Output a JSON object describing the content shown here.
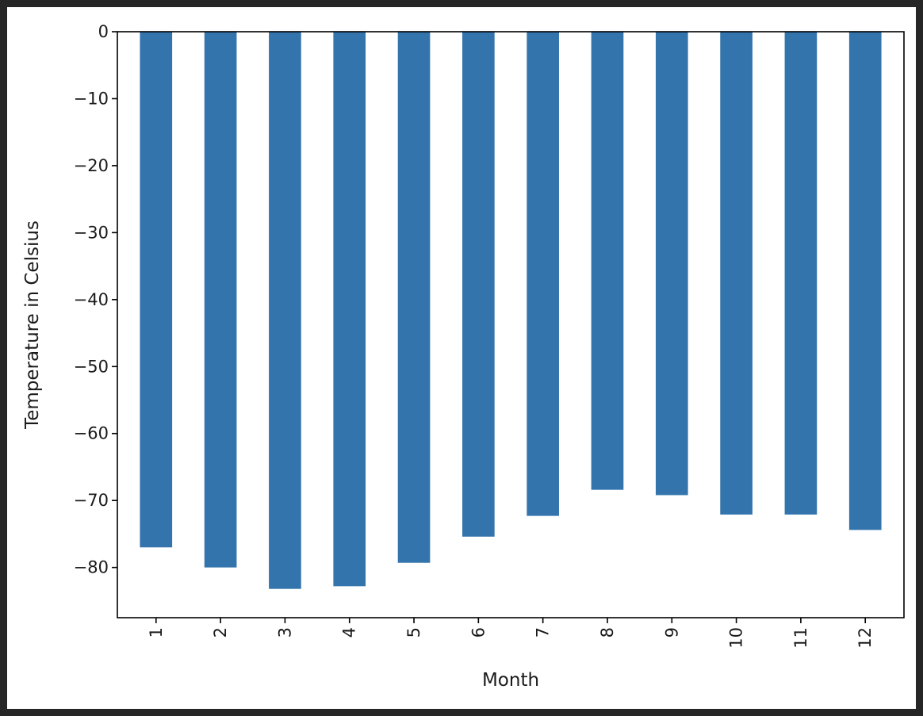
{
  "chart_data": {
    "type": "bar",
    "categories": [
      "1",
      "2",
      "3",
      "4",
      "5",
      "6",
      "7",
      "8",
      "9",
      "10",
      "11",
      "12"
    ],
    "values": [
      -77.0,
      -80.0,
      -83.2,
      -82.8,
      -79.3,
      -75.4,
      -72.3,
      -68.4,
      -69.2,
      -72.1,
      -72.1,
      -74.4
    ],
    "xlabel": "Month",
    "ylabel": "Temperature in Celsius",
    "ylim": [
      -87.5,
      0
    ],
    "yticks": [
      0,
      -10,
      -20,
      -30,
      -40,
      -50,
      -60,
      -70,
      -80
    ],
    "ytick_labels": [
      "0",
      "−10",
      "−20",
      "−30",
      "−40",
      "−50",
      "−60",
      "−70",
      "−80"
    ],
    "grid": false,
    "legend": "none",
    "bar_color": "#3474ad"
  }
}
